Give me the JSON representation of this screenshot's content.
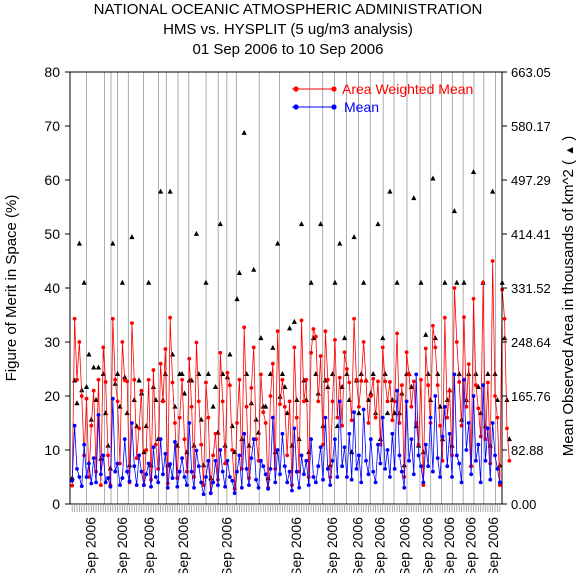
{
  "chart_data": {
    "type": "scatter",
    "title_lines": [
      "NATIONAL OCEANIC ATMOSPHERIC ADMINISTRATION",
      "HMS vs. HYSPLIT (5 ug/m3 analysis)",
      "01 Sep 2006 to 10 Sep 2006"
    ],
    "ylabel_left": "Figure of Merit in Space (%)",
    "ylabel_right": "Mean Observed Area in thousands of km^2",
    "right_axis_marker": "▲",
    "y_left_range": [
      0,
      80
    ],
    "y_left_ticks": [
      "0",
      "10",
      "20",
      "30",
      "40",
      "50",
      "60",
      "70",
      "80"
    ],
    "y_right_range": [
      0,
      663.05
    ],
    "y_right_ticks": [
      "0.00",
      "82.88",
      "165.76",
      "248.64",
      "331.52",
      "414.41",
      "497.29",
      "580.17",
      "663.05"
    ],
    "x_tick_labels": [
      "Sep 2006",
      "Sep 2006",
      "Sep 2006",
      "Sep 2006",
      "Sep 2006",
      "Sep 2006",
      "Sep 2006",
      "Sep 2006",
      "Sep 2006",
      "Sep 2006",
      "Sep 2006",
      "Sep 2006",
      "Sep 2006",
      "Sep 2006"
    ],
    "x_tick_label_positions": [
      0.047,
      0.12,
      0.183,
      0.262,
      0.362,
      0.523,
      0.606,
      0.665,
      0.717,
      0.774,
      0.828,
      0.877,
      0.927,
      0.979
    ],
    "period_divider_positions": [
      0.038,
      0.08,
      0.095,
      0.11,
      0.135,
      0.17,
      0.205,
      0.223,
      0.25,
      0.275,
      0.315,
      0.343,
      0.363,
      0.385,
      0.438,
      0.485,
      0.555,
      0.585,
      0.612,
      0.64,
      0.668,
      0.695,
      0.725,
      0.75,
      0.78,
      0.81,
      0.835,
      0.86,
      0.885,
      0.91,
      0.935,
      0.958,
      0.985
    ],
    "legend": [
      {
        "name": "Area Weighted Mean",
        "color": "#ff0000"
      },
      {
        "name": "Mean",
        "color": "#0000ff"
      }
    ],
    "grid": "vertical period dividers",
    "legend_position": "top-right",
    "x_count": 180,
    "series": [
      {
        "name": "Area Weighted Mean",
        "color": "#ff0000",
        "values": [
          3.4,
          34.3,
          23.0,
          30.0,
          20.0,
          9.0,
          19.5,
          5.0,
          14.5,
          21.0,
          6.0,
          23.0,
          3.5,
          29.0,
          22.6,
          9.0,
          3.5,
          34.3,
          23.0,
          19.0,
          7.5,
          30.0,
          22.9,
          22.7,
          4.0,
          33.5,
          23.0,
          8.5,
          14.0,
          21.0,
          3.5,
          10.0,
          23.0,
          4.5,
          24.8,
          11.0,
          6.5,
          26.0,
          19.0,
          28.7,
          3.8,
          34.5,
          22.5,
          15.0,
          4.8,
          16.0,
          23.0,
          12.0,
          6.0,
          26.9,
          18.0,
          5.0,
          29.9,
          19.0,
          11.0,
          3.5,
          22.5,
          16.0,
          2.0,
          9.0,
          13.0,
          4.5,
          28.0,
          19.0,
          7.5,
          24.3,
          22.0,
          10.0,
          2.8,
          15.0,
          23.0,
          6.5,
          32.7,
          18.0,
          4.8,
          21.5,
          29.0,
          12.0,
          8.0,
          24.0,
          17.0,
          15.0,
          3.0,
          20.0,
          26.0,
          6.5,
          32.0,
          18.5,
          23.0,
          18.0,
          9.0,
          19.0,
          3.5,
          29.0,
          16.0,
          6.0,
          34.0,
          19.0,
          23.0,
          5.0,
          28.0,
          32.4,
          31.0,
          19.0,
          27.4,
          11.0,
          32.0,
          23.0,
          5.0,
          19.0,
          30.4,
          16.0,
          23.4,
          14.5,
          28.1,
          25.0,
          22.5,
          15.5,
          34.3,
          23.0,
          18.0,
          22.8,
          30.0,
          22.8,
          15.0,
          20.0,
          23.2,
          16.0,
          22.7,
          11.0,
          29.0,
          22.7,
          19.0,
          22.6,
          15.5,
          19.0,
          31.6,
          15.0,
          22.0,
          5.0,
          28.1,
          24.0,
          18.0,
          22.7,
          15.0,
          11.0,
          23.0,
          3.5,
          28.8,
          22.0,
          15.0,
          33.0,
          29.0,
          22.0,
          14.5,
          8.0,
          34.5,
          16.0,
          21.0,
          9.0,
          40.0,
          30.0,
          22.6,
          14.5,
          34.6,
          18.0,
          25.9,
          7.0,
          38.0,
          22.0,
          17.7,
          12.5,
          41.0,
          12.0,
          22.5,
          7.5,
          45.0,
          20.0,
          16.0,
          3.5,
          39.7,
          34.3,
          14.0,
          8.0
        ]
      },
      {
        "name": "Mean",
        "color": "#0000ff",
        "values": [
          4.3,
          14.5,
          6.5,
          5.0,
          3.3,
          11.0,
          5.0,
          7.5,
          3.8,
          8.5,
          4.0,
          16.5,
          5.5,
          9.0,
          4.0,
          4.8,
          3.2,
          19.5,
          6.0,
          7.5,
          3.5,
          4.8,
          12.0,
          6.0,
          4.2,
          15.0,
          7.0,
          3.5,
          9.0,
          6.0,
          3.5,
          5.5,
          7.5,
          3.2,
          10.5,
          5.0,
          4.0,
          12.0,
          5.5,
          9.3,
          3.0,
          7.4,
          4.8,
          11.5,
          3.2,
          6.0,
          8.5,
          5.0,
          3.5,
          15.0,
          6.0,
          3.0,
          9.9,
          7.0,
          4.0,
          1.8,
          5.0,
          8.0,
          2.0,
          4.0,
          8.0,
          3.5,
          10.0,
          6.0,
          3.2,
          8.0,
          5.0,
          4.3,
          2.0,
          6.0,
          9.0,
          3.0,
          13.0,
          6.5,
          3.5,
          8.5,
          12.0,
          4.5,
          3.0,
          8.0,
          7.0,
          5.5,
          2.8,
          6.5,
          16.0,
          4.0,
          10.0,
          5.5,
          13.0,
          7.0,
          4.0,
          6.0,
          2.5,
          14.0,
          6.0,
          3.0,
          9.0,
          5.5,
          8.0,
          3.5,
          12.0,
          5.0,
          4.0,
          7.0,
          10.5,
          4.5,
          16.0,
          6.5,
          3.5,
          8.0,
          12.0,
          5.0,
          19.0,
          7.0,
          10.5,
          5.0,
          13.0,
          4.5,
          17.0,
          6.5,
          9.0,
          4.0,
          17.5,
          8.0,
          5.5,
          12.0,
          6.0,
          4.0,
          11.0,
          7.5,
          16.0,
          6.5,
          10.0,
          5.0,
          13.0,
          6.5,
          21.0,
          9.0,
          6.0,
          3.0,
          19.0,
          8.0,
          12.0,
          5.5,
          24.0,
          9.0,
          7.0,
          4.0,
          11.0,
          7.0,
          16.0,
          6.0,
          20.0,
          8.5,
          5.0,
          12.5,
          18.0,
          7.0,
          13.0,
          5.0,
          24.0,
          9.0,
          7.5,
          4.0,
          23.0,
          10.0,
          15.0,
          5.5,
          20.0,
          8.0,
          11.0,
          4.0,
          22.0,
          8.0,
          14.0,
          4.5,
          15.0,
          9.0,
          6.5,
          4.0
        ]
      },
      {
        "name": "Mean Observed Area",
        "axis": "right",
        "marker": "triangle",
        "values": [
          40.0,
          190.0,
          155.0,
          400.0,
          175.0,
          340.0,
          180.0,
          230.0,
          130.0,
          210.0,
          160.0,
          210.0,
          70.0,
          200.0,
          140.0,
          90.0,
          55.0,
          400.0,
          185.0,
          200.0,
          150.0,
          340.0,
          195.0,
          140.0,
          60.0,
          410.0,
          160.0,
          120.0,
          190.0,
          170.0,
          80.0,
          120.0,
          340.0,
          60.0,
          180.0,
          160.0,
          100.0,
          480.0,
          160.0,
          200.0,
          60.0,
          480.0,
          230.0,
          150.0,
          90.0,
          200.0,
          200.0,
          170.0,
          80.0,
          190.0,
          190.0,
          90.0,
          415.0,
          200.0,
          130.0,
          60.0,
          340.0,
          200.0,
          40.0,
          150.0,
          180.0,
          110.0,
          430.0,
          200.0,
          90.0,
          195.0,
          230.0,
          120.0,
          80.0,
          315.0,
          355.0,
          100.0,
          570.0,
          200.0,
          90.0,
          155.0,
          360.0,
          130.0,
          110.0,
          255.0,
          150.0,
          150.0,
          40.0,
          200.0,
          240.0,
          80.0,
          400.0,
          165.0,
          200.0,
          180.0,
          140.0,
          270.0,
          90.0,
          280.0,
          160.0,
          100.0,
          430.0,
          190.0,
          160.0,
          80.0,
          340.0,
          255.0,
          200.0,
          170.0,
          430.0,
          120.0,
          190.0,
          180.0,
          60.0,
          200.0,
          340.0,
          120.0,
          400.0,
          180.0,
          255.0,
          200.0,
          160.0,
          80.0,
          410.0,
          190.0,
          140.0,
          200.0,
          340.0,
          190.0,
          160.0,
          170.0,
          200.0,
          140.0,
          430.0,
          100.0,
          255.0,
          200.0,
          140.0,
          480.0,
          160.0,
          140.0,
          340.0,
          140.0,
          170.0,
          60.0,
          200.0,
          200.0,
          180.0,
          470.0,
          120.0,
          90.0,
          340.0,
          80.0,
          260.0,
          200.0,
          160.0,
          500.0,
          255.0,
          200.0,
          150.0,
          100.0,
          340.0,
          160.0,
          175.0,
          90.0,
          450.0,
          340.0,
          200.0,
          130.0,
          340.0,
          160.0,
          200.0,
          60.0,
          510.0,
          200.0,
          180.0,
          140.0,
          340.0,
          120.0,
          200.0,
          90.0,
          480.0,
          200.0,
          160.0,
          60.0,
          340.0,
          255.0,
          160.0,
          100.0
        ]
      }
    ]
  }
}
